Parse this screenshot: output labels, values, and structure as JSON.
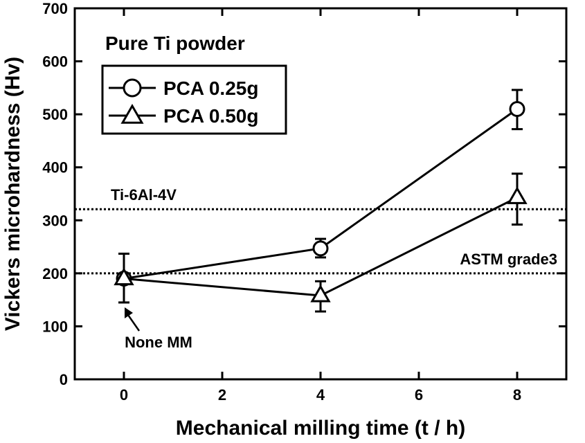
{
  "chart_data": {
    "type": "line",
    "title": "Pure Ti powder",
    "xlabel": "Mechanical milling time (t / h)",
    "ylabel": "Vickers microhardness (Hv)",
    "xlim": [
      -1,
      9
    ],
    "ylim": [
      0,
      700
    ],
    "xticks": [
      0,
      2,
      4,
      6,
      8
    ],
    "yticks": [
      0,
      100,
      200,
      300,
      400,
      500,
      600,
      700
    ],
    "xtick_labels": [
      "0",
      "2",
      "4",
      "6",
      "8"
    ],
    "ytick_labels": [
      "0",
      "100",
      "200",
      "300",
      "400",
      "500",
      "600",
      "700"
    ],
    "grid": false,
    "legend_position": "top-left",
    "series": [
      {
        "name": "PCA 0.25g",
        "marker": "circle",
        "x": [
          0,
          4,
          8
        ],
        "y": [
          190,
          247,
          510
        ],
        "err_low": [
          145,
          230,
          472
        ],
        "err_high": [
          237,
          265,
          546
        ]
      },
      {
        "name": "PCA 0.50g",
        "marker": "triangle",
        "x": [
          0,
          4,
          8
        ],
        "y": [
          190,
          158,
          343
        ],
        "err_low": [
          145,
          128,
          292
        ],
        "err_high": [
          237,
          185,
          388
        ]
      }
    ],
    "reference_lines": [
      {
        "label": "Ti-6Al-4V",
        "y": 321
      },
      {
        "label": "ASTM grade3",
        "y": 200
      }
    ],
    "annotations": [
      {
        "text": "None MM",
        "x": 0,
        "y": 140
      }
    ]
  }
}
